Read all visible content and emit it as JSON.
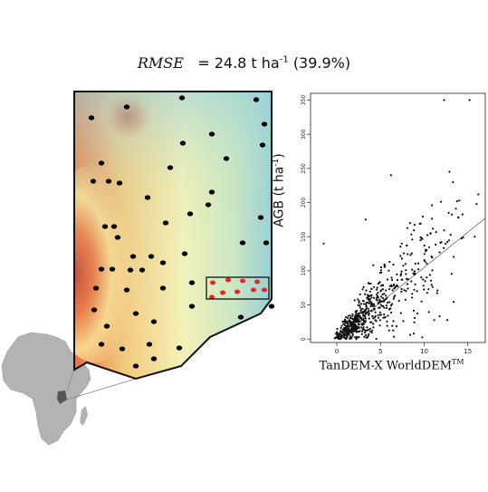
{
  "header": {
    "metric": "RMSE",
    "equals": "= 24.8 t ha",
    "exponent": "-1",
    "percent": "(39.9%)"
  },
  "colors": {
    "dem_low": "#7fc8d6",
    "dem_mid": "#f4f0b0",
    "dem_high": "#d8542a",
    "plots": "#000000",
    "highlight_plots": "#e8231f",
    "africa": "#b0b0b0",
    "study_area_marker": "#555555"
  },
  "chart_data": {
    "type": "scatter",
    "x_axis_label": "TanDEM-X WorldDEM",
    "x_axis_label_superscript": "TM",
    "y_axis_label": "AGB (t ha",
    "y_axis_label_superscript": "-1",
    "y_axis_label_close": ")",
    "xlim": [
      -3,
      17
    ],
    "ylim": [
      -5,
      360
    ],
    "x_ticks": [
      0,
      5,
      10,
      15
    ],
    "y_ticks": [
      0,
      50,
      100,
      150,
      200,
      250,
      300,
      350
    ],
    "regression_line": {
      "intercept": 2.0,
      "slope": 10.3
    },
    "outliers": [
      [
        12.3,
        350
      ],
      [
        15.2,
        350
      ],
      [
        12.9,
        245
      ],
      [
        6.2,
        240
      ],
      [
        13.3,
        230
      ],
      [
        16.2,
        212
      ],
      [
        3.3,
        175
      ],
      [
        16.0,
        198
      ],
      [
        8.4,
        170
      ],
      [
        -1.5,
        140
      ],
      [
        15.8,
        150
      ]
    ],
    "n_points": 620
  }
}
